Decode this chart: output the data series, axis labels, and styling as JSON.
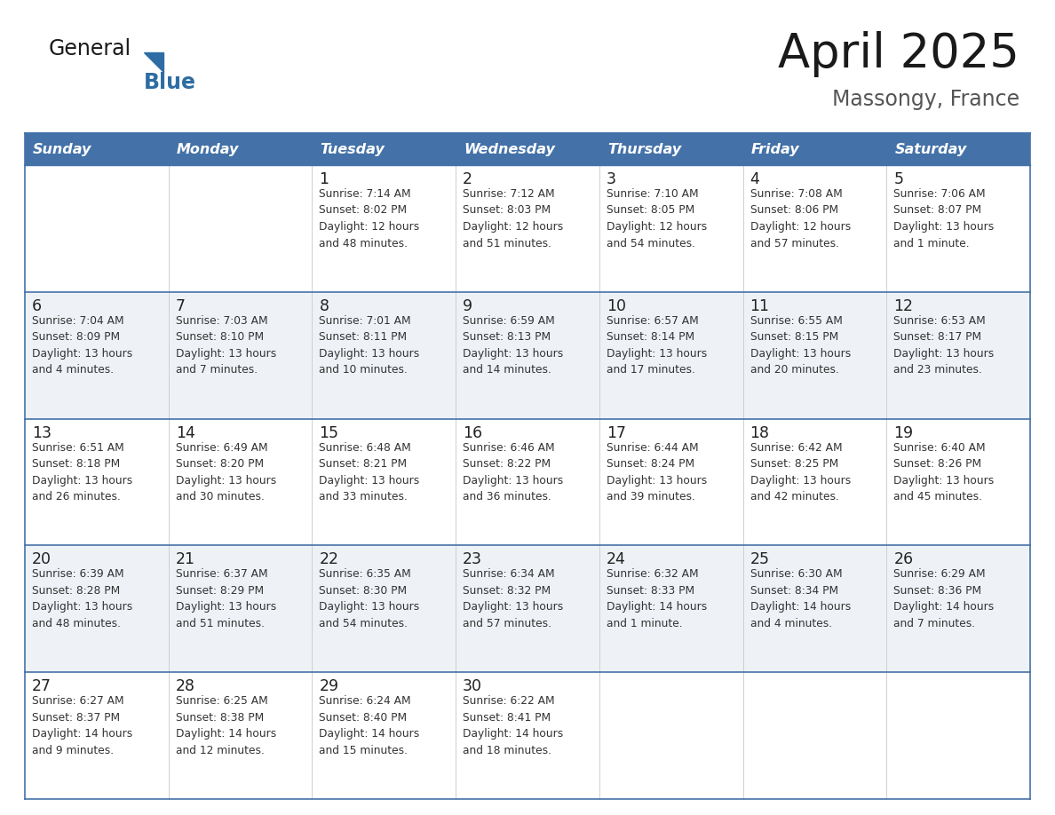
{
  "title": "April 2025",
  "subtitle": "Massongy, France",
  "days_of_week": [
    "Sunday",
    "Monday",
    "Tuesday",
    "Wednesday",
    "Thursday",
    "Friday",
    "Saturday"
  ],
  "header_bg": "#4472a8",
  "header_text": "#ffffff",
  "row_bg_odd": "#ffffff",
  "row_bg_even": "#eef2f7",
  "border_color": "#4472a8",
  "text_color": "#333333",
  "day_num_color": "#222222",
  "weeks": [
    [
      {
        "day": null,
        "text": ""
      },
      {
        "day": null,
        "text": ""
      },
      {
        "day": 1,
        "text": "Sunrise: 7:14 AM\nSunset: 8:02 PM\nDaylight: 12 hours\nand 48 minutes."
      },
      {
        "day": 2,
        "text": "Sunrise: 7:12 AM\nSunset: 8:03 PM\nDaylight: 12 hours\nand 51 minutes."
      },
      {
        "day": 3,
        "text": "Sunrise: 7:10 AM\nSunset: 8:05 PM\nDaylight: 12 hours\nand 54 minutes."
      },
      {
        "day": 4,
        "text": "Sunrise: 7:08 AM\nSunset: 8:06 PM\nDaylight: 12 hours\nand 57 minutes."
      },
      {
        "day": 5,
        "text": "Sunrise: 7:06 AM\nSunset: 8:07 PM\nDaylight: 13 hours\nand 1 minute."
      }
    ],
    [
      {
        "day": 6,
        "text": "Sunrise: 7:04 AM\nSunset: 8:09 PM\nDaylight: 13 hours\nand 4 minutes."
      },
      {
        "day": 7,
        "text": "Sunrise: 7:03 AM\nSunset: 8:10 PM\nDaylight: 13 hours\nand 7 minutes."
      },
      {
        "day": 8,
        "text": "Sunrise: 7:01 AM\nSunset: 8:11 PM\nDaylight: 13 hours\nand 10 minutes."
      },
      {
        "day": 9,
        "text": "Sunrise: 6:59 AM\nSunset: 8:13 PM\nDaylight: 13 hours\nand 14 minutes."
      },
      {
        "day": 10,
        "text": "Sunrise: 6:57 AM\nSunset: 8:14 PM\nDaylight: 13 hours\nand 17 minutes."
      },
      {
        "day": 11,
        "text": "Sunrise: 6:55 AM\nSunset: 8:15 PM\nDaylight: 13 hours\nand 20 minutes."
      },
      {
        "day": 12,
        "text": "Sunrise: 6:53 AM\nSunset: 8:17 PM\nDaylight: 13 hours\nand 23 minutes."
      }
    ],
    [
      {
        "day": 13,
        "text": "Sunrise: 6:51 AM\nSunset: 8:18 PM\nDaylight: 13 hours\nand 26 minutes."
      },
      {
        "day": 14,
        "text": "Sunrise: 6:49 AM\nSunset: 8:20 PM\nDaylight: 13 hours\nand 30 minutes."
      },
      {
        "day": 15,
        "text": "Sunrise: 6:48 AM\nSunset: 8:21 PM\nDaylight: 13 hours\nand 33 minutes."
      },
      {
        "day": 16,
        "text": "Sunrise: 6:46 AM\nSunset: 8:22 PM\nDaylight: 13 hours\nand 36 minutes."
      },
      {
        "day": 17,
        "text": "Sunrise: 6:44 AM\nSunset: 8:24 PM\nDaylight: 13 hours\nand 39 minutes."
      },
      {
        "day": 18,
        "text": "Sunrise: 6:42 AM\nSunset: 8:25 PM\nDaylight: 13 hours\nand 42 minutes."
      },
      {
        "day": 19,
        "text": "Sunrise: 6:40 AM\nSunset: 8:26 PM\nDaylight: 13 hours\nand 45 minutes."
      }
    ],
    [
      {
        "day": 20,
        "text": "Sunrise: 6:39 AM\nSunset: 8:28 PM\nDaylight: 13 hours\nand 48 minutes."
      },
      {
        "day": 21,
        "text": "Sunrise: 6:37 AM\nSunset: 8:29 PM\nDaylight: 13 hours\nand 51 minutes."
      },
      {
        "day": 22,
        "text": "Sunrise: 6:35 AM\nSunset: 8:30 PM\nDaylight: 13 hours\nand 54 minutes."
      },
      {
        "day": 23,
        "text": "Sunrise: 6:34 AM\nSunset: 8:32 PM\nDaylight: 13 hours\nand 57 minutes."
      },
      {
        "day": 24,
        "text": "Sunrise: 6:32 AM\nSunset: 8:33 PM\nDaylight: 14 hours\nand 1 minute."
      },
      {
        "day": 25,
        "text": "Sunrise: 6:30 AM\nSunset: 8:34 PM\nDaylight: 14 hours\nand 4 minutes."
      },
      {
        "day": 26,
        "text": "Sunrise: 6:29 AM\nSunset: 8:36 PM\nDaylight: 14 hours\nand 7 minutes."
      }
    ],
    [
      {
        "day": 27,
        "text": "Sunrise: 6:27 AM\nSunset: 8:37 PM\nDaylight: 14 hours\nand 9 minutes."
      },
      {
        "day": 28,
        "text": "Sunrise: 6:25 AM\nSunset: 8:38 PM\nDaylight: 14 hours\nand 12 minutes."
      },
      {
        "day": 29,
        "text": "Sunrise: 6:24 AM\nSunset: 8:40 PM\nDaylight: 14 hours\nand 15 minutes."
      },
      {
        "day": 30,
        "text": "Sunrise: 6:22 AM\nSunset: 8:41 PM\nDaylight: 14 hours\nand 18 minutes."
      },
      {
        "day": null,
        "text": ""
      },
      {
        "day": null,
        "text": ""
      },
      {
        "day": null,
        "text": ""
      }
    ]
  ],
  "logo_text_general": "General",
  "logo_text_blue": "Blue",
  "logo_triangle_color": "#2e6da4",
  "logo_general_color": "#1a1a1a",
  "logo_blue_color": "#2e6da4",
  "fig_width": 11.88,
  "fig_height": 9.18,
  "dpi": 100
}
